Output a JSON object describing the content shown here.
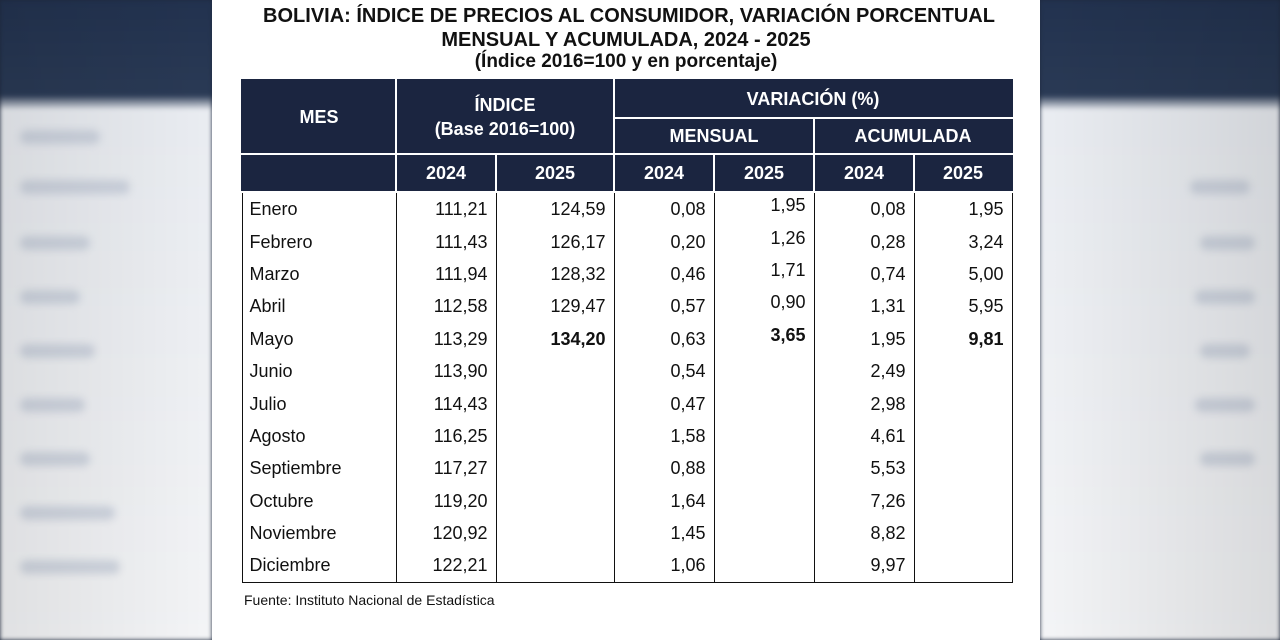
{
  "title": {
    "line1": "BOLIVIA: ÍNDICE DE PRECIOS AL CONSUMIDOR, VARIACIÓN PORCENTUAL",
    "line2": "MENSUAL Y ACUMULADA, 2024 - 2025",
    "line3": "(Índice 2016=100 y en porcentaje)"
  },
  "table": {
    "headers": {
      "mes": "MES",
      "indice": "ÍNDICE",
      "indice_base": "(Base 2016=100)",
      "variacion": "VARIACIÓN (%)",
      "mensual": "MENSUAL",
      "acumulada": "ACUMULADA",
      "years": [
        "2024",
        "2025",
        "2024",
        "2025",
        "2024",
        "2025"
      ]
    },
    "rows": [
      {
        "mes": "Enero",
        "idx_2024": "111,21",
        "idx_2025": "124,59",
        "men_2024": "0,08",
        "men_2025": "1,95",
        "acu_2024": "0,08",
        "acu_2025": "1,95"
      },
      {
        "mes": "Febrero",
        "idx_2024": "111,43",
        "idx_2025": "126,17",
        "men_2024": "0,20",
        "men_2025": "1,26",
        "acu_2024": "0,28",
        "acu_2025": "3,24"
      },
      {
        "mes": "Marzo",
        "idx_2024": "111,94",
        "idx_2025": "128,32",
        "men_2024": "0,46",
        "men_2025": "1,71",
        "acu_2024": "0,74",
        "acu_2025": "5,00"
      },
      {
        "mes": "Abril",
        "idx_2024": "112,58",
        "idx_2025": "129,47",
        "men_2024": "0,57",
        "men_2025": "0,90",
        "acu_2024": "1,31",
        "acu_2025": "5,95"
      },
      {
        "mes": "Mayo",
        "idx_2024": "113,29",
        "idx_2025": "134,20",
        "men_2024": "0,63",
        "men_2025": "3,65",
        "acu_2024": "1,95",
        "acu_2025": "9,81"
      },
      {
        "mes": "Junio",
        "idx_2024": "113,90",
        "idx_2025": "",
        "men_2024": "0,54",
        "men_2025": "",
        "acu_2024": "2,49",
        "acu_2025": ""
      },
      {
        "mes": "Julio",
        "idx_2024": "114,43",
        "idx_2025": "",
        "men_2024": "0,47",
        "men_2025": "",
        "acu_2024": "2,98",
        "acu_2025": ""
      },
      {
        "mes": "Agosto",
        "idx_2024": "116,25",
        "idx_2025": "",
        "men_2024": "1,58",
        "men_2025": "",
        "acu_2024": "4,61",
        "acu_2025": ""
      },
      {
        "mes": "Septiembre",
        "idx_2024": "117,27",
        "idx_2025": "",
        "men_2024": "0,88",
        "men_2025": "",
        "acu_2024": "5,53",
        "acu_2025": ""
      },
      {
        "mes": "Octubre",
        "idx_2024": "119,20",
        "idx_2025": "",
        "men_2024": "1,64",
        "men_2025": "",
        "acu_2024": "7,26",
        "acu_2025": ""
      },
      {
        "mes": "Noviembre",
        "idx_2024": "120,92",
        "idx_2025": "",
        "men_2024": "1,45",
        "men_2025": "",
        "acu_2024": "8,82",
        "acu_2025": ""
      },
      {
        "mes": "Diciembre",
        "idx_2024": "122,21",
        "idx_2025": "",
        "men_2024": "1,06",
        "men_2025": "",
        "acu_2024": "9,97",
        "acu_2025": ""
      }
    ]
  },
  "source": "Fuente: Instituto Nacional de Estadística",
  "colors": {
    "header_bg": "#1b2540",
    "header_text": "#ffffff",
    "body_text": "#111111"
  }
}
